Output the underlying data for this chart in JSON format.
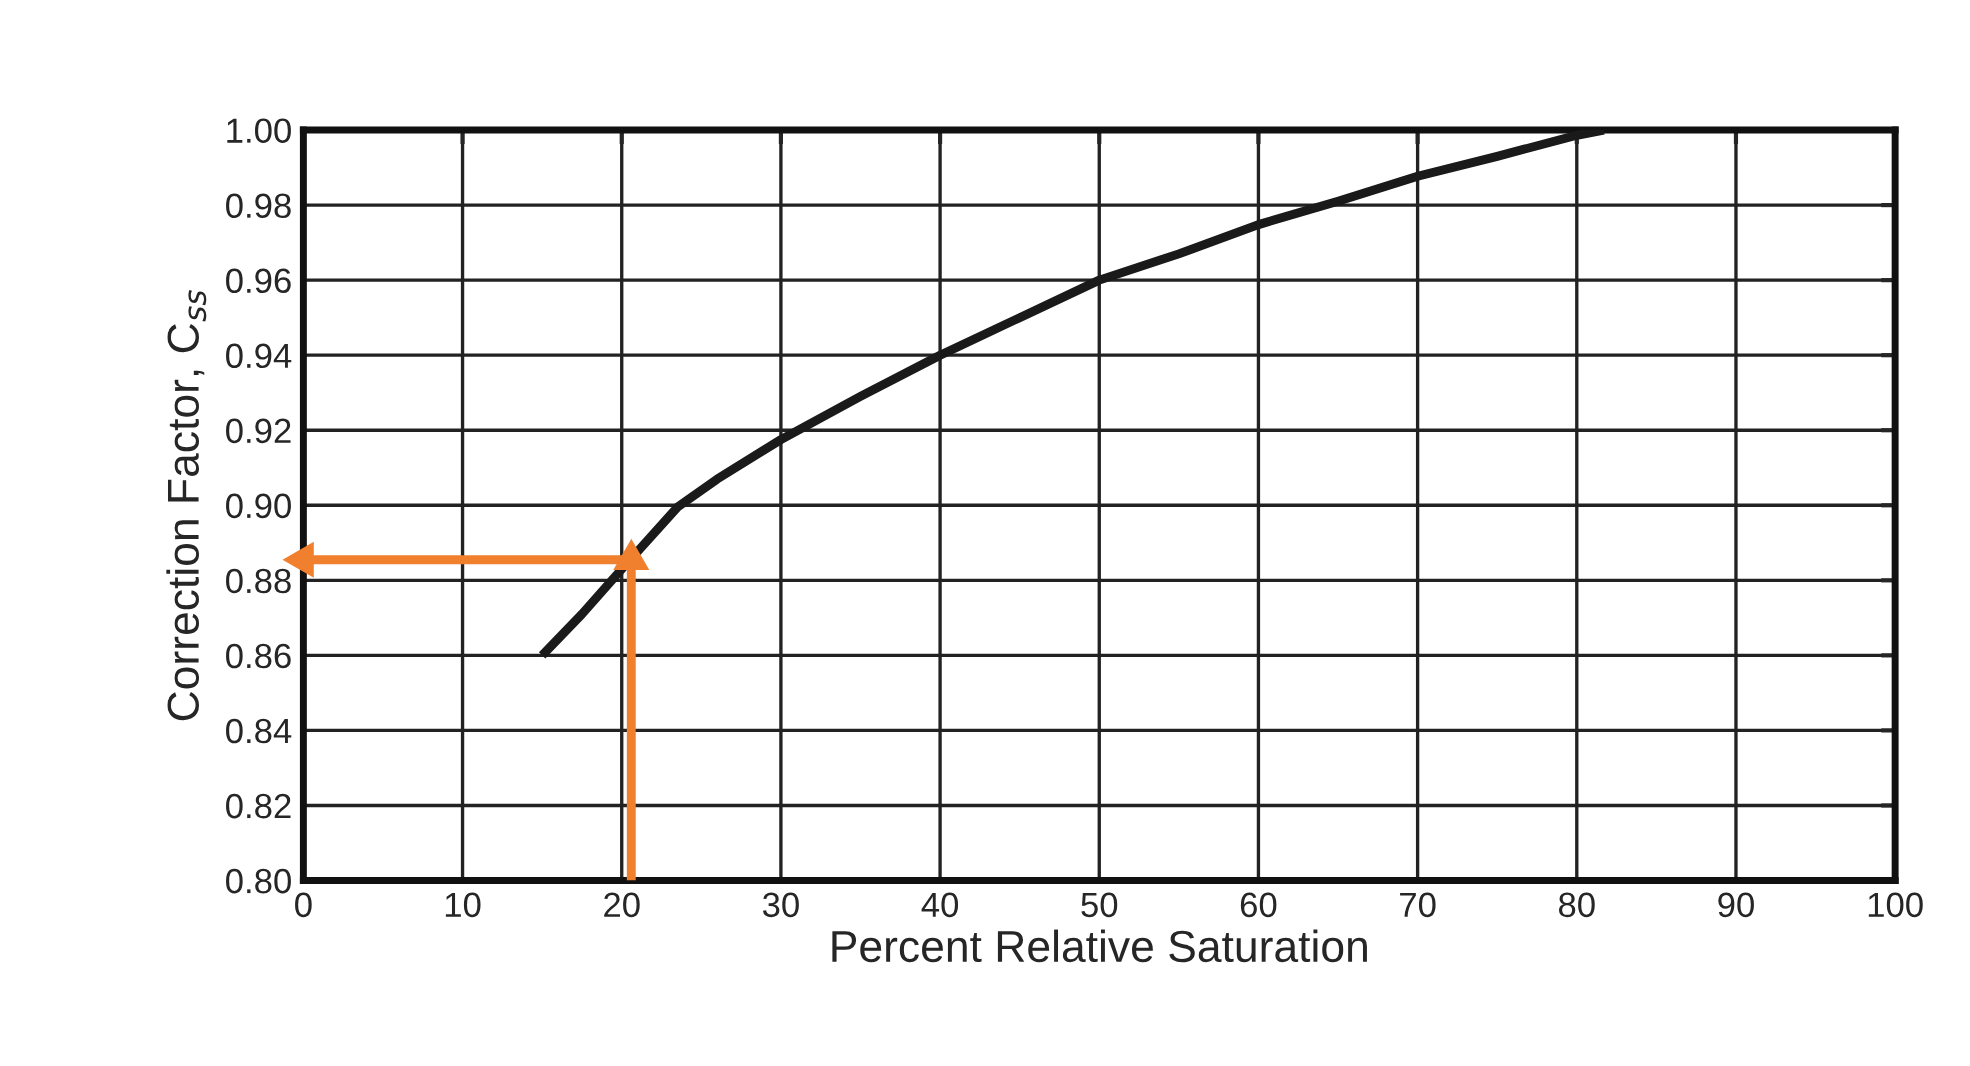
{
  "chart_data": {
    "type": "line",
    "xlabel": "Percent Relative Saturation",
    "ylabel": "Correction Factor, C$_{ss}$",
    "series": [
      {
        "color": "#1a1a1a",
        "x": [
          15,
          17.5,
          20,
          23.5,
          26,
          30,
          35,
          40,
          45,
          50,
          55,
          60,
          65,
          70,
          75,
          80,
          81.7
        ],
        "values": [
          0.86,
          0.871,
          0.883,
          0.8995,
          0.907,
          0.9175,
          0.929,
          0.94,
          0.95,
          0.96,
          0.967,
          0.9748,
          0.981,
          0.9877,
          0.993,
          0.9986,
          1.0
        ]
      },
      {
        "type": "line",
        "marker": "triangle",
        "color": "#f07f2e",
        "x": [
          20.6,
          20.6,
          0
        ],
        "values": [
          0.8,
          0.8855,
          0.8855
        ]
      }
    ],
    "xlim": [
      0,
      100
    ],
    "xticks": [
      0,
      10,
      20,
      30,
      40,
      50,
      60,
      70,
      80,
      90,
      100
    ],
    "ylim": [
      0.8,
      1.0
    ],
    "yticks": [
      {
        "value": 0.8,
        "label": "0.80"
      },
      {
        "value": 0.82,
        "label": "0.82"
      },
      {
        "value": 0.84,
        "label": "0.84"
      },
      {
        "value": 0.86,
        "label": "0.86"
      },
      {
        "value": 0.88,
        "label": "0.88"
      },
      {
        "value": 0.9,
        "label": "0.90"
      },
      {
        "value": 0.92,
        "label": "0.92"
      },
      {
        "value": 0.94,
        "label": "0.94"
      },
      {
        "value": 0.96,
        "label": "0.96"
      },
      {
        "value": 0.98,
        "label": "0.98"
      },
      {
        "value": 1.0,
        "label": "1.00"
      }
    ],
    "grid": true
  }
}
